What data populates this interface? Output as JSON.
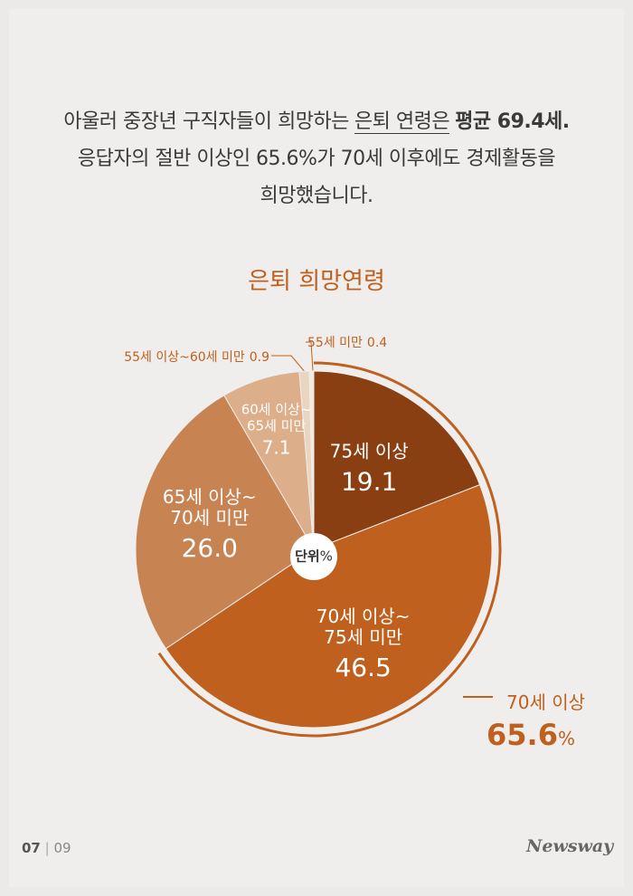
{
  "intro": {
    "line1": [
      "아울러 중장년 구직자들이 희망하는",
      "은퇴 연령은",
      "평균 69.4세."
    ],
    "line2": "응답자의 절반 이상인 65.6%가 70세 이후에도 경제활동을",
    "line3": "희망했습니다."
  },
  "chart_data": {
    "type": "pie",
    "title": "은퇴 희망연령",
    "categories": [
      "75세 이상",
      "70세 이상~\n75세 미만",
      "65세 이상~\n70세 미만",
      "60세 이상~\n65세 미만",
      "55세 이상~60세 미만",
      "55세 미만"
    ],
    "values": [
      19.1,
      46.5,
      26.0,
      7.1,
      0.9,
      0.4
    ],
    "value_labels": [
      "19.1",
      "46.5",
      "26.0",
      "7.1",
      "0.9",
      "0.4"
    ],
    "colors": [
      "#8a3f12",
      "#c0601e",
      "#c88352",
      "#dcae89",
      "#e9d5c2",
      "#f3e9df"
    ],
    "unit_label": "단위",
    "unit": "%",
    "annotation": {
      "label": "70세 이상",
      "value": 65.6,
      "value_label": "65.6"
    }
  },
  "footer": {
    "page": "07",
    "total": "09",
    "brand": "Newsway"
  }
}
